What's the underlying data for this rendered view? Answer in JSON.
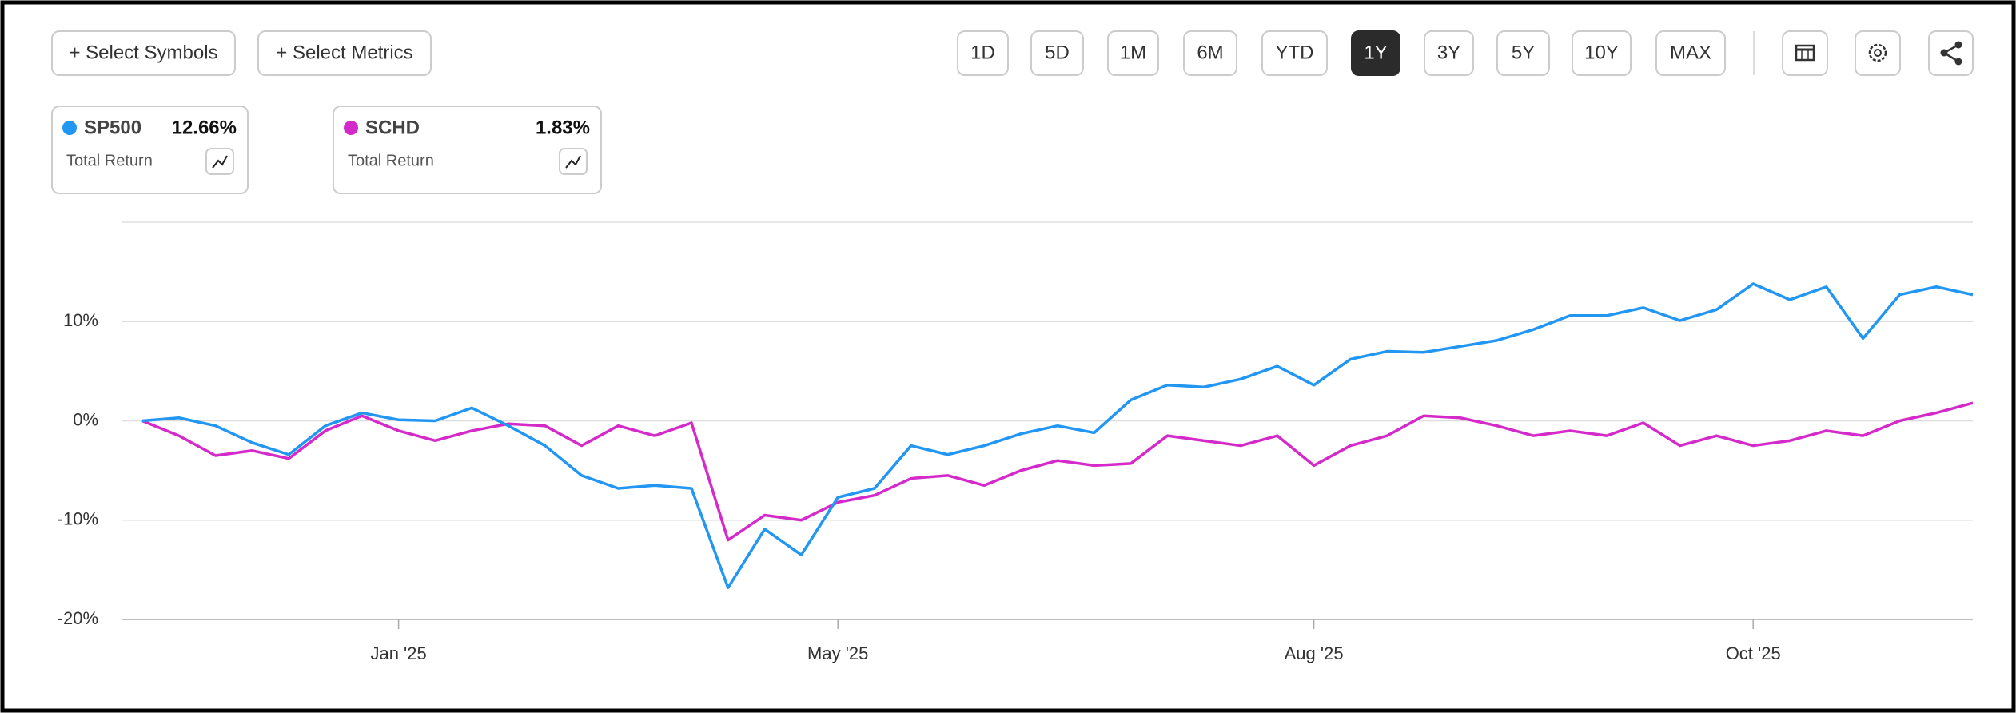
{
  "toolbar": {
    "buttons": [
      "+ Select Symbols",
      "+ Select Metrics"
    ],
    "ranges": [
      "1D",
      "5D",
      "1M",
      "6M",
      "YTD",
      "1Y",
      "3Y",
      "5Y",
      "10Y",
      "MAX"
    ],
    "active_range": 5
  },
  "legend_cards": [
    {
      "value": "12.66%",
      "metric": "Total Return"
    },
    {
      "value": "1.83%",
      "metric": "Total Return"
    }
  ],
  "chart_data": {
    "type": "line",
    "categories": [
      null,
      null,
      null,
      null,
      null,
      null,
      null,
      "Jan '25",
      null,
      null,
      null,
      null,
      null,
      null,
      null,
      null,
      null,
      null,
      null,
      "May '25",
      null,
      null,
      null,
      null,
      null,
      null,
      null,
      null,
      null,
      null,
      null,
      null,
      "Aug '25",
      null,
      null,
      null,
      null,
      null,
      null,
      null,
      null,
      null,
      null,
      null,
      "Oct '25",
      null,
      null,
      null,
      null,
      null,
      null
    ],
    "series": [
      {
        "name": "SP500",
        "color": "#2196f3",
        "values": [
          0,
          0.3,
          -0.5,
          -2.2,
          -3.4,
          -0.5,
          0.8,
          0.1,
          0,
          1.3,
          -0.5,
          -2.5,
          -5.5,
          -6.8,
          -6.5,
          -6.8,
          -16.8,
          -10.9,
          -13.5,
          -7.7,
          -6.8,
          -2.5,
          -3.4,
          -2.5,
          -1.3,
          -0.5,
          -1.2,
          2.1,
          3.6,
          3.4,
          4.2,
          5.5,
          3.6,
          6.2,
          7.0,
          6.9,
          7.5,
          8.1,
          9.2,
          10.6,
          10.6,
          11.4,
          10.1,
          11.2,
          13.8,
          12.2,
          13.5,
          8.3,
          12.7,
          13.5,
          12.7
        ]
      },
      {
        "name": "SCHD",
        "color": "#d42ac9",
        "values": [
          0,
          -1.5,
          -3.5,
          -3.0,
          -3.8,
          -1.0,
          0.5,
          -1.0,
          -2.0,
          -1.0,
          -0.3,
          -0.5,
          -2.5,
          -0.5,
          -1.5,
          -0.2,
          -12,
          -9.5,
          -10.0,
          -8.2,
          -7.5,
          -5.8,
          -5.5,
          -6.5,
          -5.0,
          -4.0,
          -4.5,
          -4.3,
          -1.5,
          -2.0,
          -2.5,
          -1.5,
          -4.5,
          -2.5,
          -1.5,
          0.5,
          0.3,
          -0.5,
          -1.5,
          -1.0,
          -1.5,
          -0.2,
          -2.5,
          -1.5,
          -2.5,
          -2.0,
          -1.0,
          -1.5,
          0,
          0.8,
          1.8
        ]
      }
    ],
    "ylim": [
      -20,
      20
    ],
    "yticks": [
      {
        "value": -20,
        "label": "-20%"
      },
      {
        "value": -10,
        "label": "-10%"
      },
      {
        "value": 0,
        "label": "0%"
      },
      {
        "value": 10,
        "label": "10%"
      }
    ],
    "grid": true
  }
}
